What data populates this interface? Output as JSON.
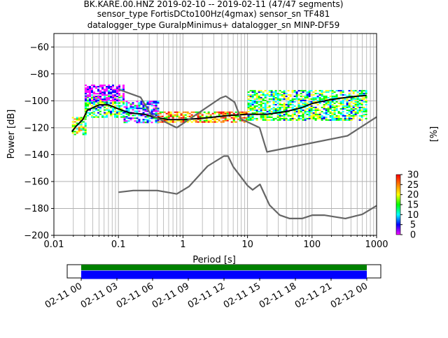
{
  "title_lines": [
    "BK.KARE.00.HNZ   2019-02-10 -- 2019-02-11  (47/47 segments)",
    "sensor_type FortisDCto100Hz(4gmax) sensor_sn TF481",
    "datalogger_type GuralpMinimus+ datalogger_sn MINP-DF59"
  ],
  "chart_data": [
    {
      "type": "heatmap",
      "xlabel": "Period [s]",
      "ylabel": "Power [dB]",
      "x_scale": "log",
      "xlim": [
        0.01,
        1000
      ],
      "ylim": [
        -200,
        -50
      ],
      "x_ticks": [
        0.01,
        0.1,
        1,
        10,
        100,
        1000
      ],
      "x_tick_labels": [
        "0.01",
        "0.1",
        "1",
        "10",
        "100",
        "1000"
      ],
      "y_ticks": [
        -200,
        -180,
        -160,
        -140,
        -120,
        -100,
        -80,
        -60
      ],
      "y_tick_labels": [
        "−200",
        "−180",
        "−160",
        "−140",
        "−120",
        "−100",
        "−80",
        "−60"
      ],
      "grid": true,
      "colorbar": {
        "label": "[%]",
        "range": [
          0,
          30
        ],
        "ticks": [
          0,
          5,
          10,
          15,
          20,
          25,
          30
        ],
        "tick_labels": [
          "0",
          "5",
          "10",
          "15",
          "20",
          "25",
          "30"
        ],
        "colors": [
          "#ffffff",
          "#ff00ff",
          "#0000ff",
          "#00ffff",
          "#00ff00",
          "#ffff00",
          "#ff8000",
          "#ff0000"
        ]
      },
      "series": [
        {
          "role": "mode",
          "color": "#000000",
          "points": [
            [
              0.019,
              -123
            ],
            [
              0.022,
              -119
            ],
            [
              0.028,
              -114
            ],
            [
              0.033,
              -107
            ],
            [
              0.05,
              -103
            ],
            [
              0.07,
              -103
            ],
            [
              0.1,
              -106
            ],
            [
              0.15,
              -109
            ],
            [
              0.25,
              -110
            ],
            [
              0.35,
              -112
            ],
            [
              0.6,
              -114
            ],
            [
              1,
              -114
            ],
            [
              2,
              -113
            ],
            [
              5,
              -111
            ],
            [
              10,
              -110
            ],
            [
              20,
              -110
            ],
            [
              40,
              -108
            ],
            [
              70,
              -105
            ],
            [
              100,
              -102
            ],
            [
              200,
              -99
            ],
            [
              400,
              -97
            ],
            [
              700,
              -96
            ]
          ]
        },
        {
          "role": "noise-model-high",
          "color": "#666666",
          "points": [
            [
              0.1,
              -91.5
            ],
            [
              0.22,
              -97.4
            ],
            [
              0.32,
              -110.5
            ],
            [
              0.8,
              -120
            ],
            [
              3.8,
              -98
            ],
            [
              4.6,
              -96.5
            ],
            [
              6.3,
              -101
            ],
            [
              7.9,
              -113.5
            ],
            [
              15.4,
              -120
            ],
            [
              20,
              -138
            ],
            [
              354.8,
              -126
            ],
            [
              1000,
              -112
            ]
          ]
        },
        {
          "role": "noise-model-low",
          "color": "#666666",
          "points": [
            [
              0.1,
              -168
            ],
            [
              0.17,
              -166.7
            ],
            [
              0.4,
              -166.7
            ],
            [
              0.8,
              -169.2
            ],
            [
              1.24,
              -163.7
            ],
            [
              2.4,
              -148.6
            ],
            [
              4.3,
              -141.1
            ],
            [
              5,
              -141.1
            ],
            [
              6,
              -149
            ],
            [
              10,
              -163
            ],
            [
              12,
              -166.2
            ],
            [
              15.6,
              -162.1
            ],
            [
              21.9,
              -177.5
            ],
            [
              31.6,
              -185
            ],
            [
              45,
              -187.5
            ],
            [
              70,
              -187.5
            ],
            [
              101,
              -185
            ],
            [
              154,
              -185
            ],
            [
              328,
              -187.5
            ],
            [
              600,
              -184.4
            ],
            [
              1000,
              -178
            ]
          ]
        }
      ],
      "density": [
        {
          "x": [
            0.019,
            0.03
          ],
          "y": [
            -125,
            -112
          ],
          "level": 18
        },
        {
          "x": [
            0.03,
            0.12
          ],
          "y": [
            -112,
            -96
          ],
          "level": 14
        },
        {
          "x": [
            0.03,
            0.12
          ],
          "y": [
            -100,
            -88
          ],
          "level": 2
        },
        {
          "x": [
            0.12,
            0.4
          ],
          "y": [
            -116,
            -100
          ],
          "level": 8
        },
        {
          "x": [
            0.4,
            10
          ],
          "y": [
            -116,
            -108
          ],
          "level": 22
        },
        {
          "x": [
            10,
            700
          ],
          "y": [
            -114,
            -92
          ],
          "level": 14
        }
      ]
    },
    {
      "type": "timeline",
      "x_tick_labels": [
        "02-11 00",
        "02-11 03",
        "02-11 06",
        "02-11 09",
        "02-11 12",
        "02-11 15",
        "02-11 18",
        "02-11 21",
        "02-12 00"
      ],
      "bars": [
        {
          "role": "data-coverage",
          "color": "#008000"
        },
        {
          "role": "psd-coverage",
          "color": "#0000ff"
        }
      ]
    }
  ]
}
